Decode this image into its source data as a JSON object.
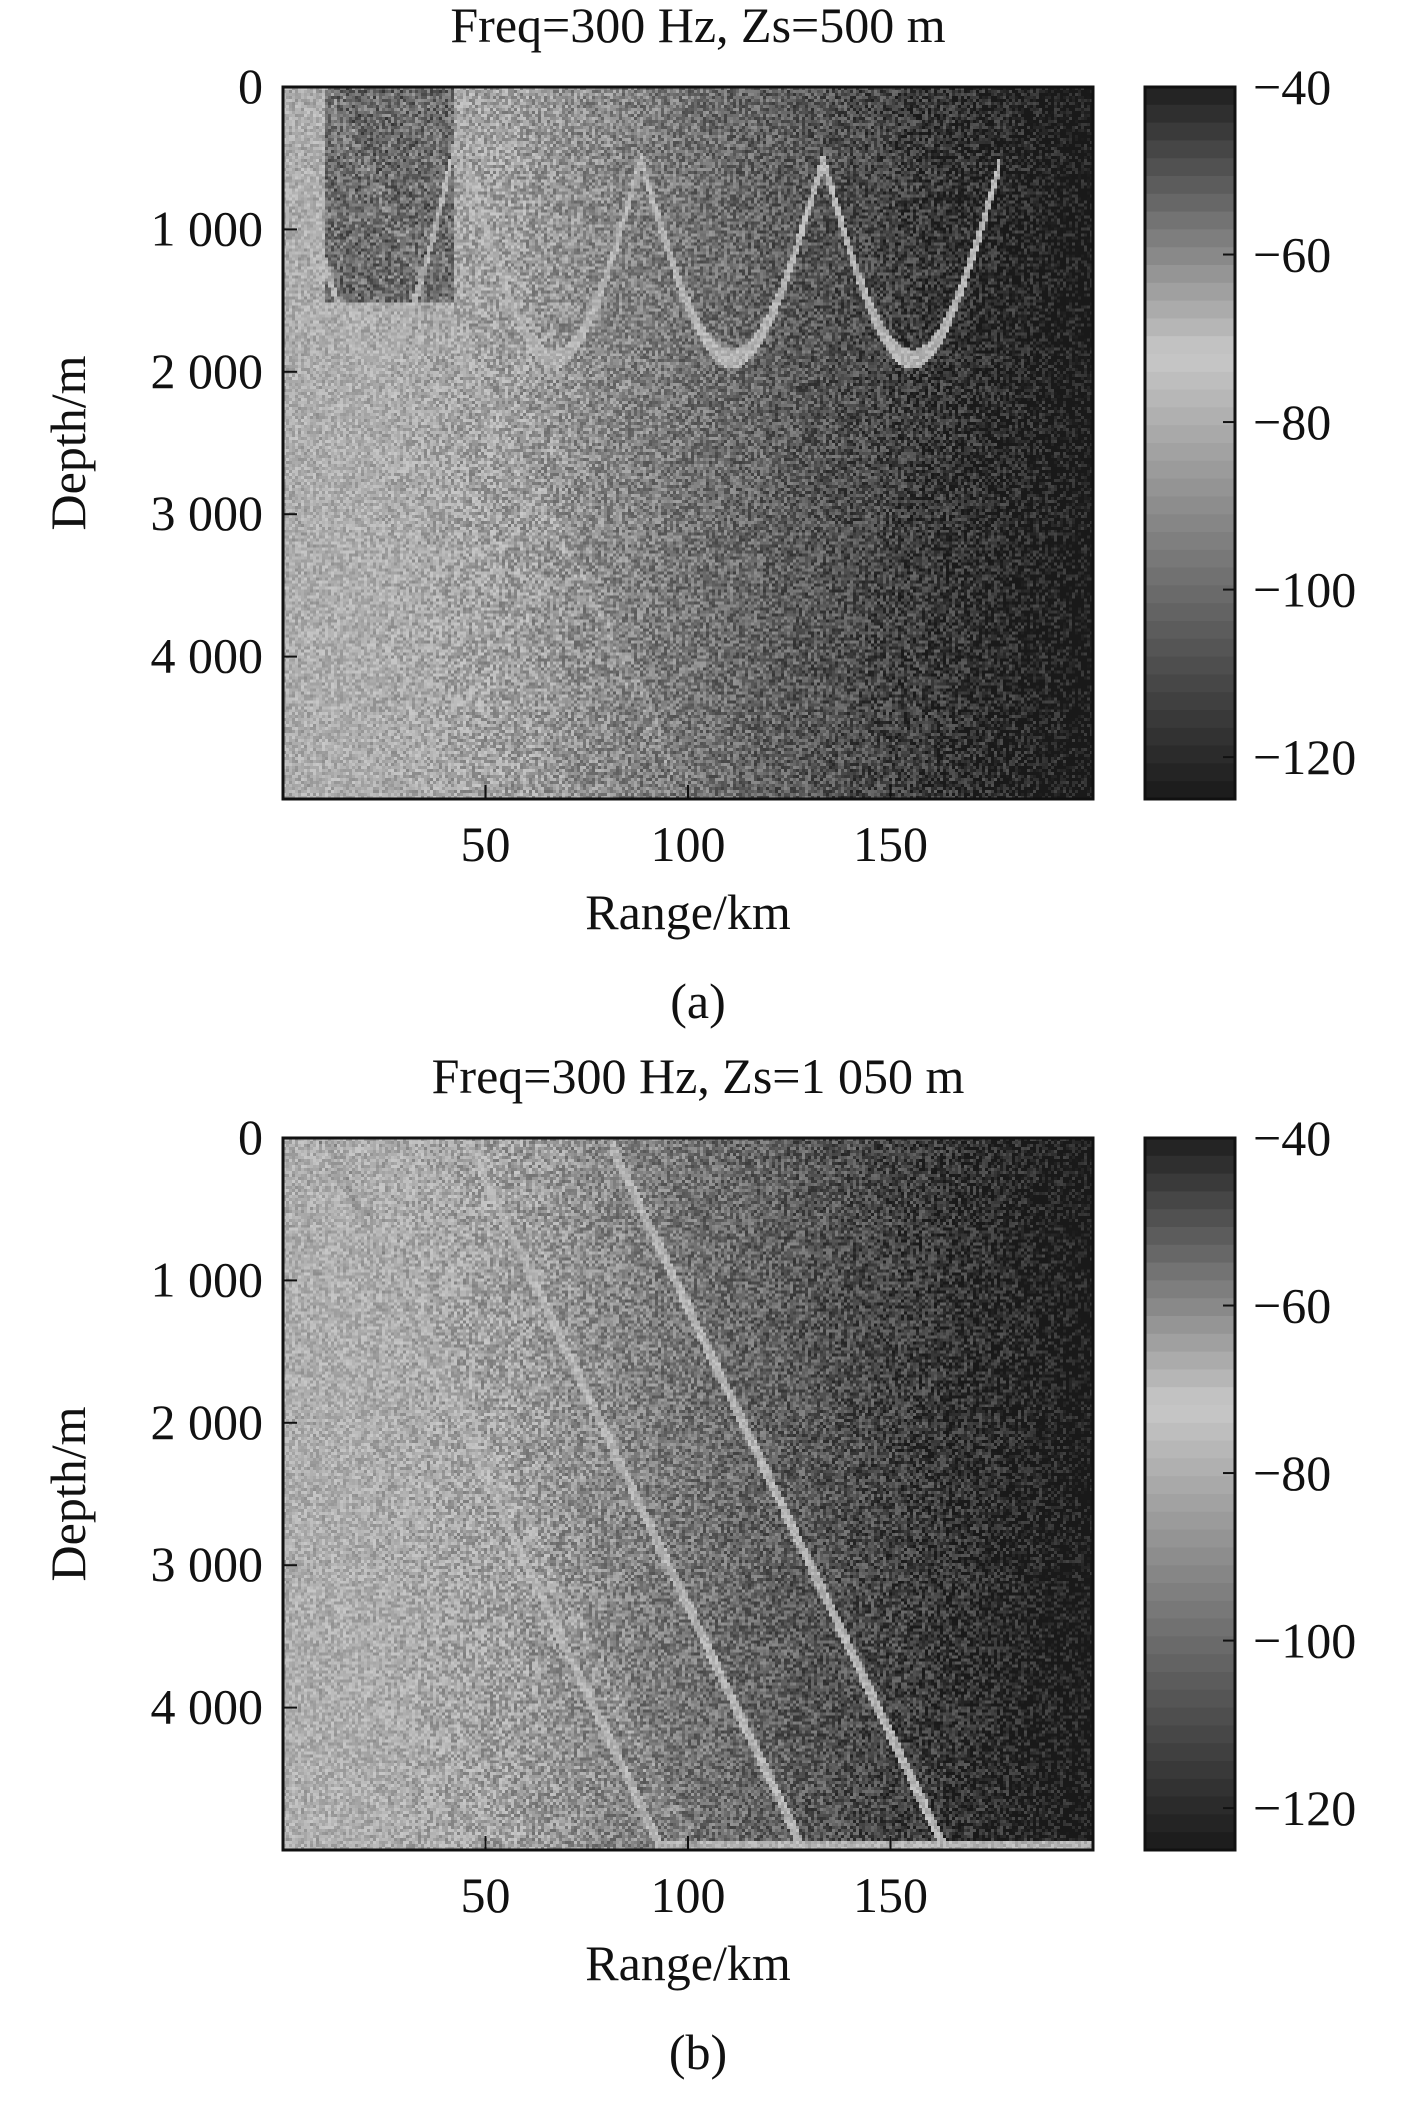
{
  "chart_data": [
    {
      "type": "heatmap",
      "title": "Freq=300 Hz, Zs=500 m",
      "xlabel": "Range/km",
      "ylabel": "Depth/m",
      "caption": "(a)",
      "xlim": [
        0,
        200
      ],
      "ylim": [
        5000,
        0
      ],
      "xticks": [
        50,
        100,
        150
      ],
      "xtick_labels": [
        "50",
        "100",
        "150"
      ],
      "yticks": [
        0,
        1000,
        2000,
        3000,
        4000
      ],
      "ytick_labels": [
        "0",
        "1 000",
        "2 000",
        "3 000",
        "4 000"
      ],
      "colorbar": {
        "range": [
          -125,
          -40
        ],
        "ticks": [
          -40,
          -60,
          -80,
          -100,
          -120
        ],
        "tick_labels": [
          "−40",
          "−60",
          "−80",
          "−100",
          "−120"
        ],
        "colormap": "gray",
        "bright_level": -72
      },
      "source_depth": 500,
      "frequency": 300,
      "ray_arc_ranges": [
        0,
        45,
        88,
        133,
        177
      ],
      "turning_depths": [
        1900,
        500
      ]
    },
    {
      "type": "heatmap",
      "title": "Freq=300 Hz, Zs=1 050 m",
      "xlabel": "Range/km",
      "ylabel": "Depth/m",
      "caption": "(b)",
      "xlim": [
        0,
        200
      ],
      "ylim": [
        5000,
        0
      ],
      "xticks": [
        50,
        100,
        150
      ],
      "xtick_labels": [
        "50",
        "100",
        "150"
      ],
      "yticks": [
        0,
        1000,
        2000,
        3000,
        4000
      ],
      "ytick_labels": [
        "0",
        "1 000",
        "2 000",
        "3 000",
        "4 000"
      ],
      "colorbar": {
        "range": [
          -125,
          -40
        ],
        "ticks": [
          -40,
          -60,
          -80,
          -100,
          -120
        ],
        "tick_labels": [
          "−40",
          "−60",
          "−80",
          "−100",
          "−120"
        ],
        "colormap": "gray",
        "bright_level": -72
      },
      "source_depth": 1050,
      "frequency": 300
    }
  ]
}
